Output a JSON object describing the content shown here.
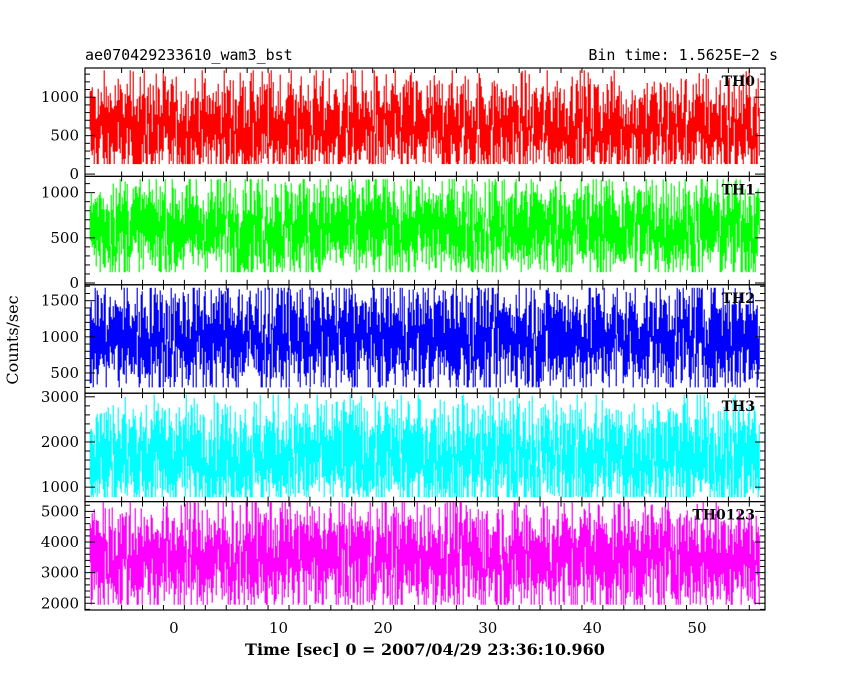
{
  "header": {
    "left_title": "ae070429233610_wam3_bst",
    "right_title": "Bin time: 1.5625E−2 s"
  },
  "chart_data": {
    "type": "line",
    "title": "ae070429233610_wam3_bst",
    "subtitle": "Bin time: 1.5625E−2 s",
    "xlabel": "Time [sec] 0 = 2007/04/29 23:36:10.960",
    "ylabel": "Counts/sec",
    "xlim": [
      -8.5,
      56.5
    ],
    "data_range": [
      -8,
      56
    ],
    "x_ticks": [
      0,
      10,
      20,
      30,
      40,
      50
    ],
    "grid": false,
    "panels": [
      {
        "name": "TH0",
        "color": "#ff0000",
        "ylim": [
          -30,
          1380
        ],
        "yticks": [
          0,
          500,
          1000
        ],
        "mean": 540,
        "low": 130,
        "high": 1350
      },
      {
        "name": "TH1",
        "color": "#00ff00",
        "ylim": [
          -20,
          1180
        ],
        "yticks": [
          0,
          500,
          1000
        ],
        "mean": 560,
        "low": 120,
        "high": 1150
      },
      {
        "name": "TH2",
        "color": "#0000ff",
        "ylim": [
          220,
          1720
        ],
        "yticks": [
          500,
          1000,
          1500
        ],
        "mean": 920,
        "low": 300,
        "high": 1680
      },
      {
        "name": "TH3",
        "color": "#00ffff",
        "ylim": [
          680,
          3080
        ],
        "yticks": [
          1000,
          2000,
          3000
        ],
        "mean": 1580,
        "low": 780,
        "high": 3050
      },
      {
        "name": "TH0123",
        "color": "#ff00ff",
        "ylim": [
          1780,
          5320
        ],
        "yticks": [
          2000,
          3000,
          4000,
          5000
        ],
        "mean": 3350,
        "low": 1950,
        "high": 5300
      }
    ]
  }
}
